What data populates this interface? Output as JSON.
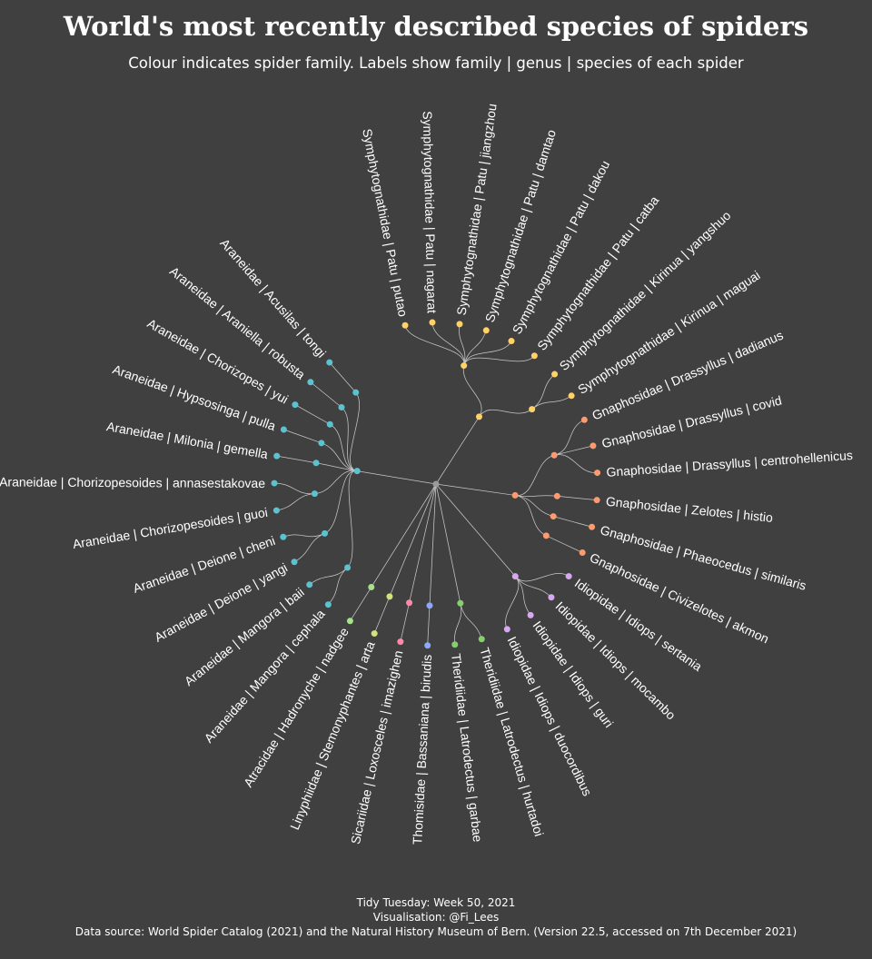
{
  "title": "World's most recently described species of spiders",
  "subtitle": "Colour indicates spider family.  Labels show family | genus | species of each spider",
  "caption": [
    "Tidy Tuesday: Week 50, 2021",
    "Visualisation: @Fi_Lees",
    "Data source: World Spider Catalog (2021) and the Natural History Museum of Bern. (Version 22.5, accessed on 7th December 2021)"
  ],
  "colors": {
    "background": "#404040",
    "edge": "#c8c8c8",
    "root": "#9a9a9a",
    "Symphytognathidae": "#ffd166",
    "Gnaphosidae": "#ff9a6e",
    "Idiopidae": "#d9a8f2",
    "Theridiidae": "#86d06b",
    "Thomisidae": "#8fa8ff",
    "Sicariidae": "#ff89ab",
    "Linyphiidae": "#d4e27a",
    "Atracidae": "#a6e28c",
    "Araneidae": "#5bc3cf"
  },
  "chart_data": {
    "type": "dendrogram",
    "layout": "circular",
    "families": [
      {
        "family": "Symphytognathidae",
        "genera": [
          {
            "genus": "Patu",
            "species": [
              "putao",
              "nagarat",
              "jiangzhou",
              "damtao",
              "dakou",
              "catba"
            ]
          },
          {
            "genus": "Kirinua",
            "species": [
              "yangshuo",
              "maguai"
            ]
          }
        ]
      },
      {
        "family": "Gnaphosidae",
        "genera": [
          {
            "genus": "Drassyllus",
            "species": [
              "dadianus",
              "covid",
              "centrohellenicus"
            ]
          },
          {
            "genus": "Zelotes",
            "species": [
              "histio"
            ]
          },
          {
            "genus": "Phaeocedus",
            "species": [
              "similaris"
            ]
          },
          {
            "genus": "Civizelotes",
            "species": [
              "akmon"
            ]
          }
        ]
      },
      {
        "family": "Idiopidae",
        "genera": [
          {
            "genus": "Idiops",
            "species": [
              "sertania",
              "mocambo",
              "guri",
              "duocordibus"
            ]
          }
        ]
      },
      {
        "family": "Theridiidae",
        "genera": [
          {
            "genus": "Latrodectus",
            "species": [
              "hurtadoi",
              "garbae"
            ]
          }
        ]
      },
      {
        "family": "Thomisidae",
        "genera": [
          {
            "genus": "Bassaniana",
            "species": [
              "birudis"
            ]
          }
        ]
      },
      {
        "family": "Sicariidae",
        "genera": [
          {
            "genus": "Loxosceles",
            "species": [
              "imazighen"
            ]
          }
        ]
      },
      {
        "family": "Linyphiidae",
        "genera": [
          {
            "genus": "Stemonyphantes",
            "species": [
              "arta"
            ]
          }
        ]
      },
      {
        "family": "Atracidae",
        "genera": [
          {
            "genus": "Hadronyche",
            "species": [
              "nadgee"
            ]
          }
        ]
      },
      {
        "family": "Araneidae",
        "genera": [
          {
            "genus": "Mangora",
            "species": [
              "cephala",
              "baii"
            ]
          },
          {
            "genus": "Deione",
            "species": [
              "yangi",
              "cheni"
            ]
          },
          {
            "genus": "Chorizopesoides",
            "species": [
              "guoi",
              "annasestakovae"
            ]
          },
          {
            "genus": "Milonia",
            "species": [
              "gemella"
            ]
          },
          {
            "genus": "Hypsosinga",
            "species": [
              "pulla"
            ]
          },
          {
            "genus": "Chorizopes",
            "species": [
              "yui"
            ]
          },
          {
            "genus": "Araniella",
            "species": [
              "robusta"
            ]
          },
          {
            "genus": "Acusilas",
            "species": [
              "tongi"
            ]
          }
        ]
      }
    ]
  }
}
